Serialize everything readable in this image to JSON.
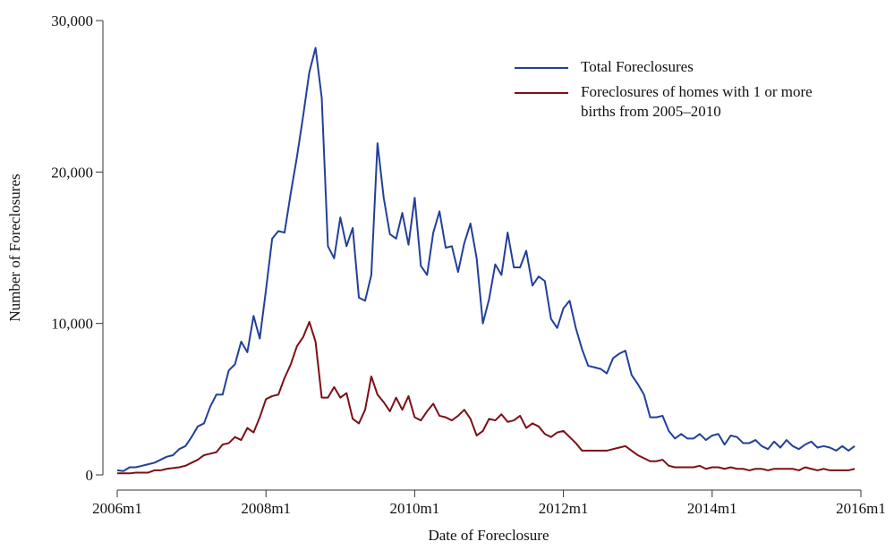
{
  "chart_data": {
    "type": "line",
    "xlabel": "Date of Foreclosure",
    "ylabel": "Number of Foreclosures",
    "x": [
      552,
      553,
      554,
      555,
      556,
      557,
      558,
      559,
      560,
      561,
      562,
      563,
      564,
      565,
      566,
      567,
      568,
      569,
      570,
      571,
      572,
      573,
      574,
      575,
      576,
      577,
      578,
      579,
      580,
      581,
      582,
      583,
      584,
      585,
      586,
      587,
      588,
      589,
      590,
      591,
      592,
      593,
      594,
      595,
      596,
      597,
      598,
      599,
      600,
      601,
      602,
      603,
      604,
      605,
      606,
      607,
      608,
      609,
      610,
      611,
      612,
      613,
      614,
      615,
      616,
      617,
      618,
      619,
      620,
      621,
      622,
      623,
      624,
      625,
      626,
      627,
      628,
      629,
      630,
      631,
      632,
      633,
      634,
      635,
      636,
      637,
      638,
      639,
      640,
      641,
      642,
      643,
      644,
      645,
      646,
      647,
      648,
      649,
      650,
      651,
      652,
      653,
      654,
      655,
      656,
      657,
      658,
      659,
      660,
      661,
      662,
      663,
      664,
      665,
      666,
      667,
      668,
      669,
      670,
      671
    ],
    "xlim": [
      552,
      672
    ],
    "xticks": [
      {
        "value": 552,
        "label": "2006m1"
      },
      {
        "value": 576,
        "label": "2008m1"
      },
      {
        "value": 600,
        "label": "2010m1"
      },
      {
        "value": 624,
        "label": "2012m1"
      },
      {
        "value": 648,
        "label": "2014m1"
      },
      {
        "value": 672,
        "label": "2016m1"
      }
    ],
    "ylim": [
      0,
      30000
    ],
    "yticks": [
      0,
      {
        "value": 10000,
        "label": "10,000"
      },
      {
        "value": 20000,
        "label": "20,000"
      },
      {
        "value": 30000,
        "label": "30,000"
      }
    ],
    "legend": "upper right",
    "series": [
      {
        "name": "Total Foreclosures",
        "color": "#22409a",
        "values": [
          300,
          250,
          500,
          500,
          600,
          700,
          800,
          1000,
          1200,
          1300,
          1700,
          1900,
          2500,
          3200,
          3400,
          4500,
          5300,
          5300,
          6900,
          7300,
          8800,
          8100,
          10500,
          9000,
          12200,
          15600,
          16100,
          16000,
          18600,
          21000,
          23700,
          26600,
          28200,
          24900,
          15100,
          14300,
          17000,
          15100,
          16300,
          11700,
          11500,
          13200,
          21900,
          18300,
          15900,
          15600,
          17300,
          15200,
          18300,
          13800,
          13200,
          16000,
          17400,
          15000,
          15100,
          13400,
          15300,
          16600,
          14300,
          10000,
          11600,
          13900,
          13200,
          16000,
          13700,
          13700,
          14800,
          12500,
          13100,
          12800,
          10300,
          9700,
          11000,
          11500,
          9700,
          8300,
          7200,
          7100,
          7000,
          6700,
          7700,
          8000,
          8200,
          6600,
          6000,
          5300,
          3800,
          3800,
          3900,
          2900,
          2400,
          2700,
          2400,
          2400,
          2700,
          2300,
          2600,
          2700,
          2000,
          2600,
          2500,
          2100,
          2100,
          2300,
          1900,
          1700,
          2200,
          1800,
          2300,
          1900,
          1700,
          2000,
          2200,
          1800,
          1900,
          1800,
          1600,
          1900,
          1600,
          1900
        ]
      },
      {
        "name": "Foreclosures of homes with 1 or more births from 2005–2010",
        "color": "#7b1016",
        "values": [
          100,
          100,
          100,
          150,
          150,
          150,
          300,
          300,
          400,
          450,
          500,
          600,
          800,
          1000,
          1300,
          1400,
          1500,
          2000,
          2100,
          2500,
          2300,
          3100,
          2800,
          3800,
          5000,
          5200,
          5300,
          6400,
          7300,
          8500,
          9100,
          10100,
          8800,
          5100,
          5100,
          5800,
          5100,
          5400,
          3700,
          3400,
          4300,
          6500,
          5300,
          4800,
          4200,
          5100,
          4300,
          5200,
          3800,
          3600,
          4200,
          4700,
          3900,
          3800,
          3600,
          3900,
          4300,
          3700,
          2600,
          2900,
          3700,
          3600,
          4000,
          3500,
          3600,
          3900,
          3100,
          3400,
          3200,
          2700,
          2500,
          2800,
          2900,
          2500,
          2100,
          1600,
          1600,
          1600,
          1600,
          1600,
          1700,
          1800,
          1900,
          1600,
          1300,
          1100,
          900,
          900,
          1000,
          600,
          500,
          500,
          500,
          500,
          600,
          400,
          500,
          500,
          400,
          500,
          400,
          400,
          300,
          400,
          400,
          300,
          400,
          400,
          400,
          400,
          300,
          500,
          400,
          300,
          400,
          300,
          300,
          300,
          300,
          400
        ]
      }
    ]
  }
}
